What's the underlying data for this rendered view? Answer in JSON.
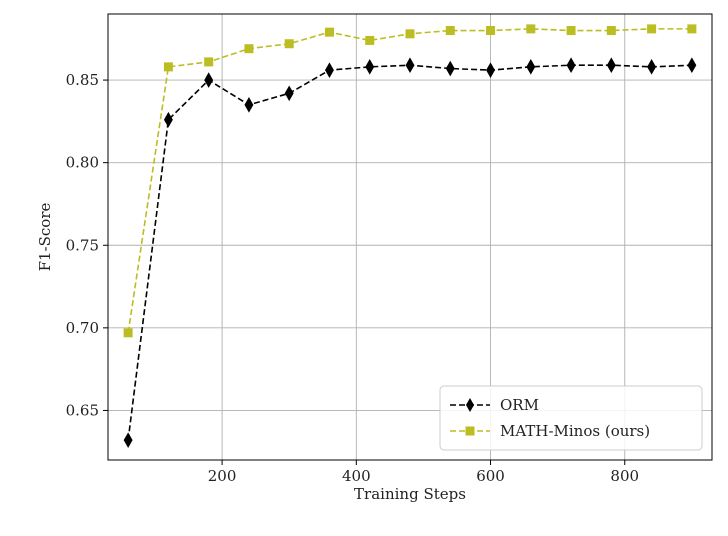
{
  "chart_data": {
    "type": "line",
    "title": "",
    "xlabel": "Training Steps",
    "ylabel": "F1-Score",
    "xlim": [
      30,
      930
    ],
    "ylim": [
      0.62,
      0.89
    ],
    "xticks": [
      200,
      400,
      600,
      800
    ],
    "yticks": [
      0.65,
      0.7,
      0.75,
      0.8,
      0.85
    ],
    "ytick_labels": [
      "0.65",
      "0.70",
      "0.75",
      "0.80",
      "0.85"
    ],
    "grid": true,
    "legend_position": "bottom-right",
    "x": [
      60,
      120,
      180,
      240,
      300,
      360,
      420,
      480,
      540,
      600,
      660,
      720,
      780,
      840,
      900
    ],
    "series": [
      {
        "name": "ORM",
        "color": "#000000",
        "marker": "diamond",
        "linestyle": "dashed",
        "values": [
          0.632,
          0.826,
          0.85,
          0.835,
          0.842,
          0.856,
          0.858,
          0.859,
          0.857,
          0.856,
          0.858,
          0.859,
          0.859,
          0.858,
          0.859
        ]
      },
      {
        "name": "MATH-Minos (ours)",
        "color": "#bcbd22",
        "marker": "square",
        "linestyle": "dashed",
        "values": [
          0.697,
          0.858,
          0.861,
          0.869,
          0.872,
          0.879,
          0.874,
          0.878,
          0.88,
          0.88,
          0.881,
          0.88,
          0.88,
          0.881,
          0.881
        ]
      }
    ]
  }
}
